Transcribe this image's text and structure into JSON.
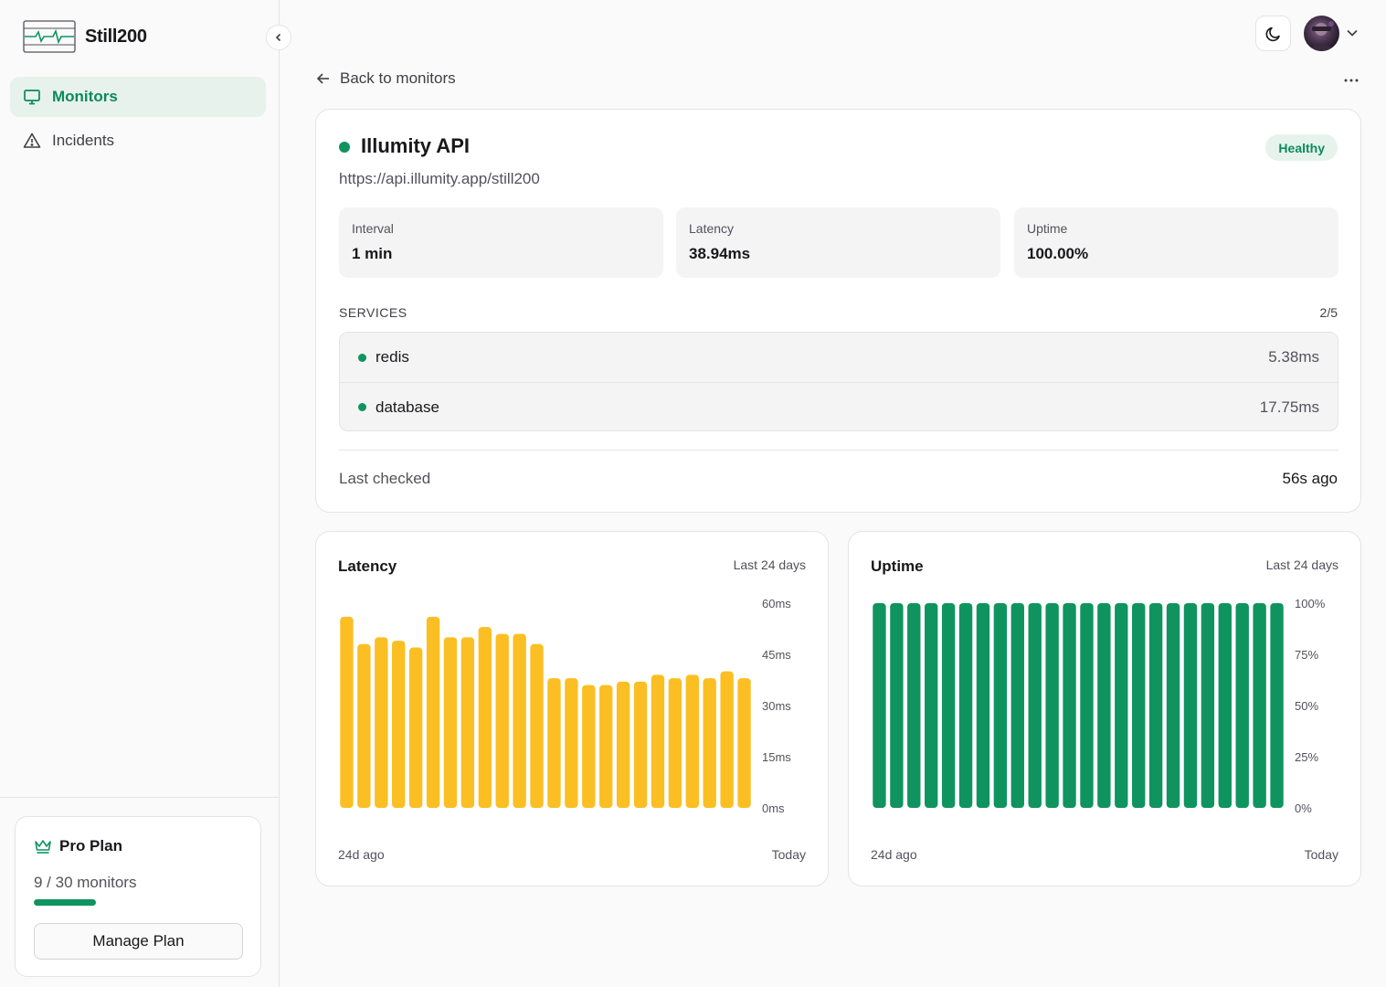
{
  "app": {
    "name": "Still200"
  },
  "sidebar": {
    "items": [
      {
        "label": "Monitors",
        "icon": "monitor-icon",
        "active": true
      },
      {
        "label": "Incidents",
        "icon": "alert-triangle-icon",
        "active": false
      }
    ],
    "plan": {
      "name": "Pro Plan",
      "usage_text": "9 / 30 monitors",
      "used": 9,
      "limit": 30,
      "manage_label": "Manage Plan"
    }
  },
  "header": {
    "back_label": "Back to monitors"
  },
  "monitor": {
    "name": "Illumity API",
    "url": "https://api.illumity.app/still200",
    "status": "Healthy",
    "stats": [
      {
        "label": "Interval",
        "value": "1 min"
      },
      {
        "label": "Latency",
        "value": "38.94ms"
      },
      {
        "label": "Uptime",
        "value": "100.00%"
      }
    ],
    "services_label": "SERVICES",
    "services_count": "2/5",
    "services": [
      {
        "name": "redis",
        "latency": "5.38ms"
      },
      {
        "name": "database",
        "latency": "17.75ms"
      }
    ],
    "last_checked_label": "Last checked",
    "last_checked_value": "56s ago"
  },
  "colors": {
    "accent": "#0f9460",
    "latency_bar": "#fbbf24",
    "uptime_bar": "#0f9460"
  },
  "chart_data": [
    {
      "type": "bar",
      "title": "Latency",
      "subtitle": "Last 24 days",
      "x_start_label": "24d ago",
      "x_end_label": "Today",
      "ylim": [
        0,
        60
      ],
      "y_ticks": [
        "60ms",
        "45ms",
        "30ms",
        "15ms",
        "0ms"
      ],
      "values": [
        56,
        48,
        50,
        49,
        47,
        56,
        50,
        50,
        53,
        51,
        51,
        48,
        38,
        38,
        36,
        36,
        37,
        37,
        39,
        38,
        39,
        38,
        40,
        38
      ]
    },
    {
      "type": "bar",
      "title": "Uptime",
      "subtitle": "Last 24 days",
      "x_start_label": "24d ago",
      "x_end_label": "Today",
      "ylim": [
        0,
        100
      ],
      "y_ticks": [
        "100%",
        "75%",
        "50%",
        "25%",
        "0%"
      ],
      "values": [
        100,
        100,
        100,
        100,
        100,
        100,
        100,
        100,
        100,
        100,
        100,
        100,
        100,
        100,
        100,
        100,
        100,
        100,
        100,
        100,
        100,
        100,
        100,
        100
      ]
    }
  ]
}
